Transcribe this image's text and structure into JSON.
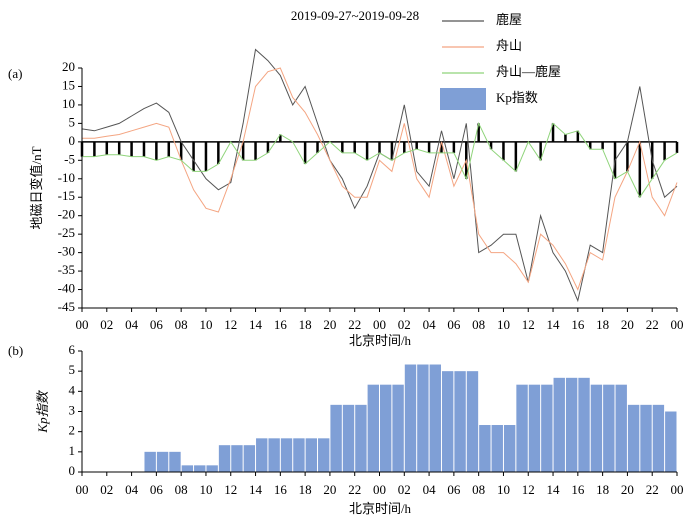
{
  "chart_data": [
    {
      "type": "line",
      "title": "2019-09-27~2019-09-28",
      "panel_label": "(a)",
      "y_label": "地磁日变值/nT",
      "x_label": "北京时间/h",
      "x": [
        0,
        1,
        2,
        3,
        4,
        5,
        6,
        7,
        8,
        9,
        10,
        11,
        12,
        13,
        14,
        15,
        16,
        17,
        18,
        19,
        20,
        21,
        22,
        23,
        24,
        25,
        26,
        27,
        28,
        29,
        30,
        31,
        32,
        33,
        34,
        35,
        36,
        37,
        38,
        39,
        40,
        41,
        42,
        43,
        44,
        45,
        46,
        47,
        48
      ],
      "xlim": [
        0,
        48
      ],
      "xticks": [
        {
          "value": 0,
          "label": "00"
        },
        {
          "value": 2,
          "label": "02"
        },
        {
          "value": 4,
          "label": "04"
        },
        {
          "value": 6,
          "label": "06"
        },
        {
          "value": 8,
          "label": "08"
        },
        {
          "value": 10,
          "label": "10"
        },
        {
          "value": 12,
          "label": "12"
        },
        {
          "value": 14,
          "label": "14"
        },
        {
          "value": 16,
          "label": "16"
        },
        {
          "value": 18,
          "label": "18"
        },
        {
          "value": 20,
          "label": "20"
        },
        {
          "value": 22,
          "label": "22"
        },
        {
          "value": 24,
          "label": "00"
        },
        {
          "value": 26,
          "label": "02"
        },
        {
          "value": 28,
          "label": "04"
        },
        {
          "value": 30,
          "label": "06"
        },
        {
          "value": 32,
          "label": "08"
        },
        {
          "value": 34,
          "label": "10"
        },
        {
          "value": 36,
          "label": "12"
        },
        {
          "value": 38,
          "label": "14"
        },
        {
          "value": 40,
          "label": "16"
        },
        {
          "value": 42,
          "label": "18"
        },
        {
          "value": 44,
          "label": "20"
        },
        {
          "value": 46,
          "label": "22"
        },
        {
          "value": 48,
          "label": "00"
        }
      ],
      "ylim": [
        -45,
        20
      ],
      "yticks": [
        20,
        15,
        10,
        5,
        0,
        -5,
        -10,
        -15,
        -20,
        -25,
        -30,
        -35,
        -40,
        -45
      ],
      "series": [
        {
          "name": "鹿屋",
          "color": "#555555",
          "values": [
            3.5,
            3,
            4,
            5,
            7,
            9,
            10.5,
            8,
            0,
            -5,
            -10,
            -13,
            -11,
            5,
            25,
            22,
            18,
            10,
            15,
            5,
            -5,
            -10,
            -18,
            -12,
            -3,
            -5,
            10,
            -8,
            -12,
            3,
            -10,
            5,
            -30,
            -28,
            -25,
            -25,
            -38,
            -20,
            -30,
            -35,
            -43,
            -28,
            -30,
            -5,
            0,
            15,
            -5,
            -15,
            -12
          ]
        },
        {
          "name": "舟山",
          "color": "#f4a582",
          "values": [
            1,
            1,
            1.5,
            2,
            3,
            4,
            5,
            4,
            -5,
            -13,
            -18,
            -19,
            -10,
            0,
            15,
            19,
            20,
            12,
            8,
            2,
            -5,
            -12,
            -15,
            -15,
            -5,
            -8,
            5,
            -10,
            -15,
            0,
            -12,
            -5,
            -25,
            -30,
            -30,
            -33,
            -38,
            -25,
            -28,
            -33,
            -40,
            -30,
            -32,
            -15,
            -8,
            0,
            -15,
            -20,
            -11
          ]
        },
        {
          "name": "舟山—鹿屋",
          "color": "#8fd47a",
          "bar_color": "#000000",
          "values": [
            -4,
            -4,
            -3.5,
            -3.5,
            -4,
            -4,
            -5,
            -4,
            -5,
            -8,
            -8,
            -6,
            0,
            -5,
            -5,
            -3,
            2,
            0,
            -6,
            -3,
            0,
            -3,
            -3,
            -5,
            -3,
            -5,
            -3,
            -2,
            -3,
            -3,
            -3,
            -10,
            5,
            -2,
            -5,
            -8,
            0,
            -5,
            5,
            2,
            3,
            -2,
            -2,
            -10,
            -8,
            -15,
            -10,
            -5,
            -3
          ]
        }
      ]
    },
    {
      "type": "bar",
      "panel_label": "(b)",
      "y_label": "Kp指数",
      "x_label": "北京时间/h",
      "x": [
        0,
        1,
        2,
        3,
        4,
        5,
        6,
        7,
        8,
        9,
        10,
        11,
        12,
        13,
        14,
        15,
        16,
        17,
        18,
        19,
        20,
        21,
        22,
        23,
        24,
        25,
        26,
        27,
        28,
        29,
        30,
        31,
        32,
        33,
        34,
        35,
        36,
        37,
        38,
        39,
        40,
        41,
        42,
        43,
        44,
        45,
        46,
        47
      ],
      "xlim": [
        0,
        48
      ],
      "xticks": [
        {
          "value": 0,
          "label": "00"
        },
        {
          "value": 2,
          "label": "02"
        },
        {
          "value": 4,
          "label": "04"
        },
        {
          "value": 6,
          "label": "06"
        },
        {
          "value": 8,
          "label": "08"
        },
        {
          "value": 10,
          "label": "10"
        },
        {
          "value": 12,
          "label": "12"
        },
        {
          "value": 14,
          "label": "14"
        },
        {
          "value": 16,
          "label": "16"
        },
        {
          "value": 18,
          "label": "18"
        },
        {
          "value": 20,
          "label": "20"
        },
        {
          "value": 22,
          "label": "22"
        },
        {
          "value": 24,
          "label": "00"
        },
        {
          "value": 26,
          "label": "02"
        },
        {
          "value": 28,
          "label": "04"
        },
        {
          "value": 30,
          "label": "06"
        },
        {
          "value": 32,
          "label": "08"
        },
        {
          "value": 34,
          "label": "10"
        },
        {
          "value": 36,
          "label": "12"
        },
        {
          "value": 38,
          "label": "14"
        },
        {
          "value": 40,
          "label": "16"
        },
        {
          "value": 42,
          "label": "18"
        },
        {
          "value": 44,
          "label": "20"
        },
        {
          "value": 46,
          "label": "22"
        },
        {
          "value": 48,
          "label": "00"
        }
      ],
      "ylim": [
        0,
        6
      ],
      "yticks": [
        0,
        1,
        2,
        3,
        4,
        5,
        6
      ],
      "series": [
        {
          "name": "Kp指数",
          "color": "#7f9fd6",
          "values": [
            0,
            0,
            0,
            0,
            0,
            1,
            1,
            1,
            0.33,
            0.33,
            0.33,
            1.33,
            1.33,
            1.33,
            1.67,
            1.67,
            1.67,
            1.67,
            1.67,
            1.67,
            3.33,
            3.33,
            3.33,
            4.33,
            4.33,
            4.33,
            5.33,
            5.33,
            5.33,
            5,
            5,
            5,
            2.33,
            2.33,
            2.33,
            4.33,
            4.33,
            4.33,
            4.67,
            4.67,
            4.67,
            4.33,
            4.33,
            4.33,
            3.33,
            3.33,
            3.33,
            3
          ]
        }
      ]
    }
  ]
}
